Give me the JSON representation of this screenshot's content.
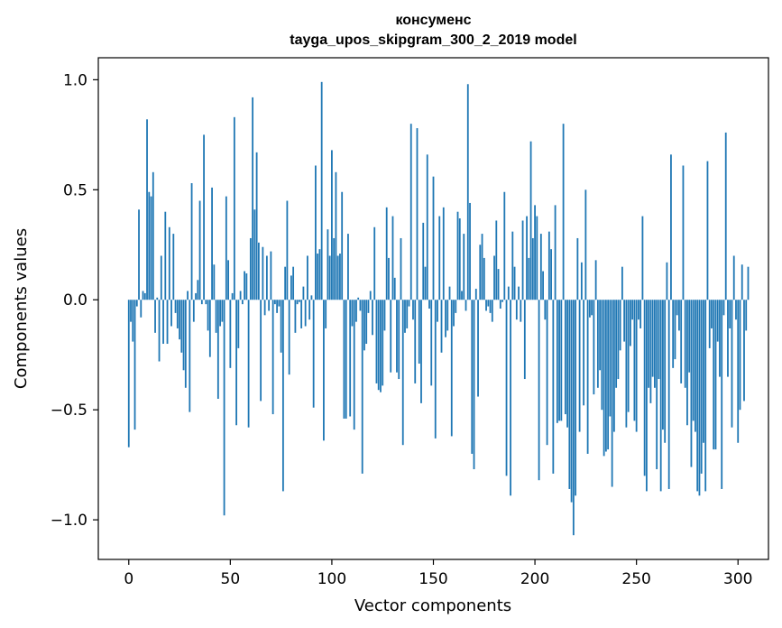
{
  "chart_data": {
    "type": "bar",
    "title": "консуменс",
    "subtitle": "tayga_upos_skipgram_300_2_2019 model",
    "xlabel": "Vector components",
    "ylabel": "Components values",
    "xlim": [
      -15,
      315
    ],
    "ylim": [
      -1.18,
      1.1
    ],
    "xticks": [
      0,
      50,
      100,
      150,
      200,
      250,
      300
    ],
    "yticks": [
      1.0,
      0.5,
      0.0,
      -0.5,
      -1.0
    ],
    "ytick_labels": [
      "1.0",
      "0.5",
      "0.0",
      "−0.5",
      "−1.0"
    ],
    "bar_color": "#1f77b4",
    "values": [
      -0.67,
      -0.1,
      -0.19,
      -0.59,
      -0.03,
      0.41,
      -0.08,
      0.04,
      0.03,
      0.82,
      0.49,
      0.47,
      0.58,
      -0.15,
      0.01,
      -0.28,
      0.2,
      -0.2,
      0.4,
      -0.2,
      0.33,
      -0.12,
      0.3,
      -0.06,
      -0.13,
      -0.18,
      -0.24,
      -0.32,
      -0.4,
      0.04,
      -0.51,
      0.53,
      -0.1,
      0.03,
      0.09,
      0.45,
      -0.02,
      0.75,
      -0.02,
      -0.14,
      -0.26,
      0.51,
      0.16,
      -0.15,
      -0.45,
      -0.12,
      -0.1,
      -0.98,
      0.47,
      0.18,
      -0.31,
      0.03,
      0.83,
      -0.57,
      -0.22,
      0.04,
      -0.02,
      0.13,
      0.12,
      -0.58,
      0.28,
      0.92,
      0.41,
      0.67,
      0.26,
      -0.46,
      0.24,
      -0.07,
      0.2,
      -0.05,
      0.22,
      -0.52,
      -0.02,
      -0.06,
      -0.03,
      -0.24,
      -0.87,
      0.15,
      0.45,
      -0.34,
      0.11,
      0.15,
      -0.15,
      -0.02,
      -0.01,
      -0.13,
      0.06,
      -0.12,
      0.2,
      -0.09,
      0.02,
      -0.49,
      0.61,
      0.21,
      0.23,
      0.99,
      -0.64,
      -0.13,
      0.32,
      0.2,
      0.68,
      0.28,
      0.58,
      0.2,
      0.21,
      0.49,
      -0.54,
      -0.54,
      0.3,
      -0.53,
      -0.12,
      -0.59,
      -0.1,
      0.01,
      -0.05,
      -0.79,
      -0.23,
      -0.2,
      -0.06,
      0.04,
      -0.16,
      0.33,
      -0.38,
      -0.41,
      -0.42,
      -0.39,
      -0.14,
      0.42,
      0.19,
      -0.33,
      0.38,
      0.1,
      -0.33,
      -0.36,
      0.28,
      -0.66,
      -0.15,
      -0.13,
      -0.03,
      0.8,
      -0.09,
      -0.38,
      0.78,
      -0.29,
      -0.47,
      0.35,
      0.15,
      0.66,
      -0.04,
      -0.39,
      0.56,
      -0.63,
      -0.1,
      0.38,
      -0.24,
      0.42,
      -0.17,
      -0.14,
      0.06,
      -0.62,
      -0.12,
      -0.06,
      0.4,
      0.37,
      0.04,
      0.3,
      -0.05,
      0.98,
      0.44,
      -0.7,
      -0.77,
      0.05,
      -0.44,
      0.25,
      0.3,
      0.19,
      -0.05,
      -0.03,
      -0.06,
      -0.1,
      0.2,
      0.36,
      0.14,
      -0.04,
      -0.01,
      0.49,
      -0.8,
      0.06,
      -0.89,
      0.31,
      0.15,
      -0.09,
      0.06,
      -0.1,
      0.36,
      -0.36,
      0.38,
      0.19,
      0.72,
      0.28,
      0.43,
      0.38,
      -0.82,
      0.3,
      0.13,
      -0.09,
      -0.66,
      0.31,
      0.23,
      -0.79,
      0.43,
      -0.56,
      -0.55,
      -0.55,
      0.8,
      -0.52,
      -0.58,
      -0.86,
      -0.92,
      -1.07,
      -0.89,
      0.28,
      -0.6,
      0.17,
      -0.48,
      0.5,
      -0.7,
      -0.08,
      -0.07,
      -0.43,
      0.18,
      -0.4,
      -0.32,
      -0.5,
      -0.71,
      -0.69,
      -0.68,
      -0.53,
      -0.85,
      -0.6,
      -0.4,
      -0.36,
      -0.23,
      0.15,
      -0.19,
      -0.58,
      -0.51,
      -0.21,
      -0.09,
      -0.55,
      -0.6,
      -0.09,
      -0.13,
      0.38,
      -0.8,
      -0.87,
      -0.4,
      -0.47,
      -0.35,
      -0.4,
      -0.77,
      -0.36,
      -0.87,
      -0.59,
      -0.65,
      0.17,
      -0.86,
      0.66,
      -0.31,
      -0.27,
      -0.07,
      -0.14,
      -0.38,
      0.61,
      -0.4,
      -0.57,
      -0.33,
      -0.76,
      -0.55,
      -0.6,
      -0.87,
      -0.89,
      -0.79,
      -0.65,
      -0.87,
      0.63,
      -0.22,
      -0.13,
      -0.68,
      -0.68,
      -0.19,
      -0.35,
      -0.86,
      -0.07,
      0.76,
      -0.35,
      -0.13,
      -0.58,
      0.2,
      -0.09,
      -0.65,
      -0.5,
      0.16,
      -0.46,
      -0.14,
      0.15
    ]
  }
}
